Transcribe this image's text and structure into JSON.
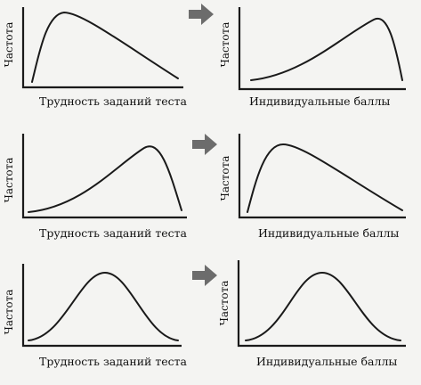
{
  "axis_labels": {
    "y": "Частота",
    "x_left": "Трудность заданий теста",
    "x_right": "Индивидуальные баллы"
  },
  "rows": [
    {
      "left": {
        "distribution": "positive-skew"
      },
      "right": {
        "distribution": "negative-skew"
      }
    },
    {
      "left": {
        "distribution": "negative-skew"
      },
      "right": {
        "distribution": "positive-skew"
      }
    },
    {
      "left": {
        "distribution": "normal"
      },
      "right": {
        "distribution": "normal"
      }
    }
  ],
  "arrow_icon": "right-arrow-icon"
}
